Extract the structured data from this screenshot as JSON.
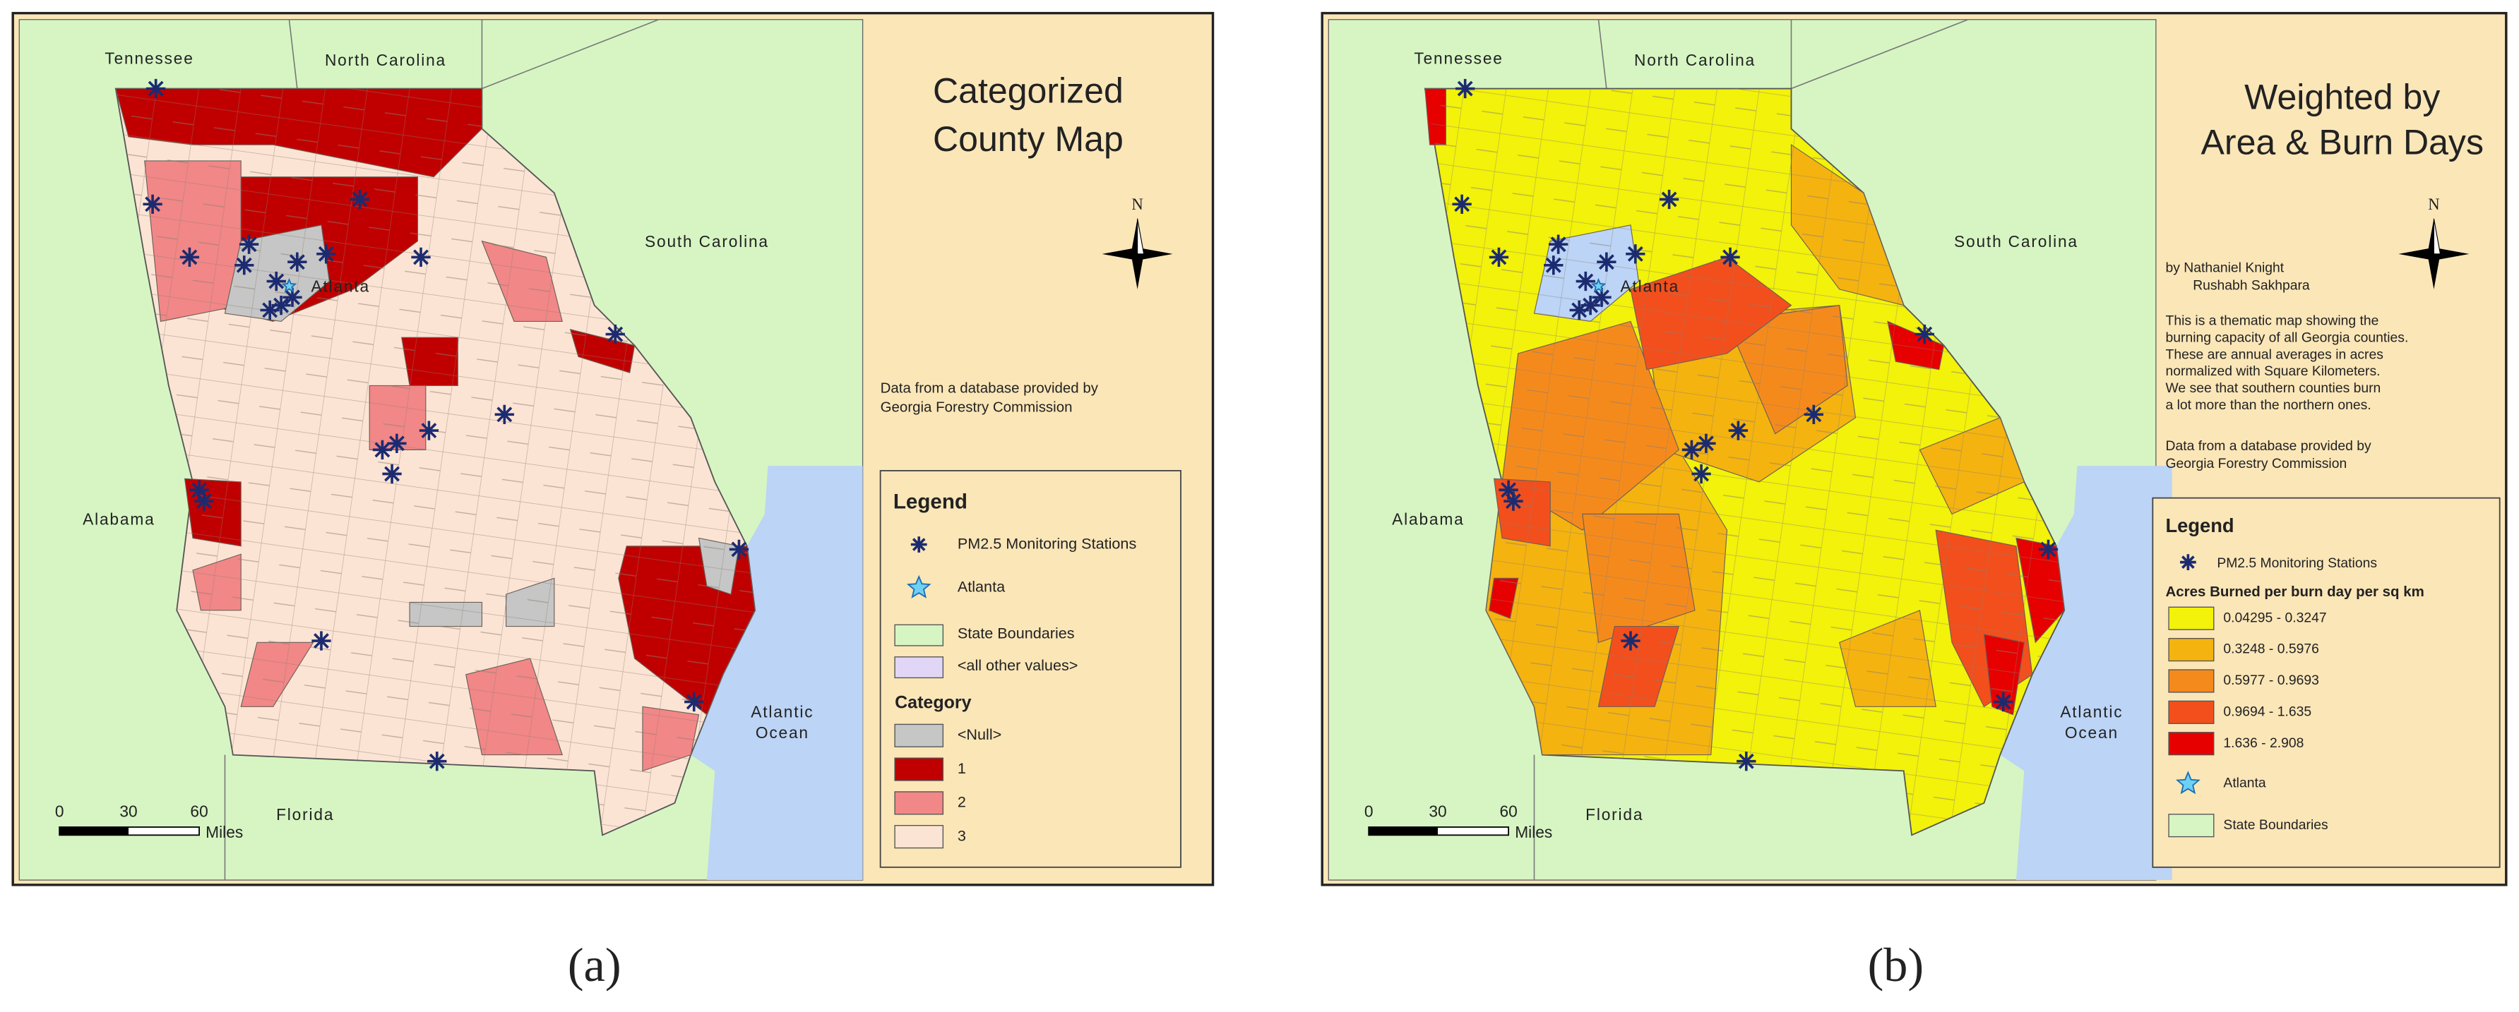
{
  "panels": [
    {
      "label": "(a)",
      "title_lines": [
        "Categorized",
        "County Map"
      ],
      "places": [
        "Tennessee",
        "North Carolina",
        "South Carolina",
        "Alabama",
        "Florida",
        "Atlantic",
        "Ocean",
        "Atlanta"
      ],
      "compass": "N",
      "scale_labels": [
        "0",
        "30",
        "60",
        "Miles"
      ],
      "note_lines": [
        "Data from a database provided by",
        "Georgia Forestry Commission"
      ],
      "legend": {
        "title": "Legend",
        "stations": "PM2.5 Monitoring Stations",
        "atlanta": "Atlanta",
        "boundaries": {
          "label": "State Boundaries",
          "color": "#d6f5c3"
        },
        "other_values": {
          "label": "<all other values>",
          "color": "#e2d6f7"
        },
        "heading": "Category",
        "classes": [
          {
            "label": "<Null>",
            "color": "#c6c6c6"
          },
          {
            "label": "1",
            "color": "#c00000"
          },
          {
            "label": "2",
            "color": "#f28787"
          },
          {
            "label": "3",
            "color": "#fce4d4"
          }
        ]
      }
    },
    {
      "label": "(b)",
      "title_lines": [
        "Weighted by",
        "Area & Burn Days"
      ],
      "places": [
        "Tennessee",
        "North Carolina",
        "South Carolina",
        "Alabama",
        "Florida",
        "Atlantic",
        "Ocean",
        "Atlanta"
      ],
      "compass": "N",
      "scale_labels": [
        "0",
        "30",
        "60",
        "Miles"
      ],
      "author_lines": [
        "by Nathaniel Knight",
        "Rushabh Sakhpara"
      ],
      "description_lines": [
        "This is a thematic map showing the",
        "burning capacity of all Georgia counties.",
        "These are annual averages in acres",
        "normalized with Square Kilometers.",
        "We see that southern counties burn",
        "a lot more than the northern ones."
      ],
      "note_lines": [
        "Data from a database provided by",
        "Georgia Forestry Commission"
      ],
      "legend": {
        "title": "Legend",
        "stations": "PM2.5 Monitoring Stations",
        "heading": "Acres Burned per burn day per sq km",
        "classes": [
          {
            "label": "0.04295 - 0.3247",
            "color": "#f2f20a"
          },
          {
            "label": "0.3248 - 0.5976",
            "color": "#f5b30f"
          },
          {
            "label": "0.5977 - 0.9693",
            "color": "#f58a1c"
          },
          {
            "label": "0.9694 - 1.635",
            "color": "#f24f1d"
          },
          {
            "label": "1.636 - 2.908",
            "color": "#e60000"
          }
        ],
        "atlanta": "Atlanta",
        "boundaries": {
          "label": "State Boundaries",
          "color": "#d6f5c3"
        }
      }
    }
  ]
}
